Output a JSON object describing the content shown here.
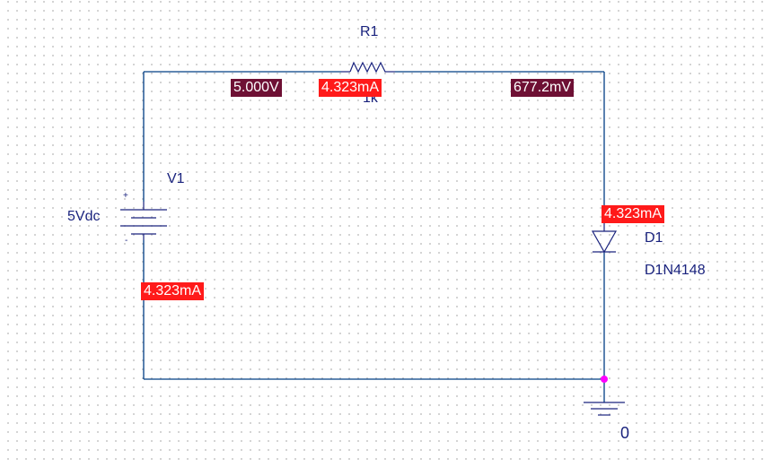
{
  "colors": {
    "wire": "#003d84",
    "part": "#1a237e",
    "voltage_marker_bg": "#6e1034",
    "current_marker_bg": "#ff1a1a",
    "junction_dot": "#ff00ff",
    "grid_dot": "#c8c8c8"
  },
  "components": {
    "r1": {
      "ref": "R1",
      "value": "1k"
    },
    "v1": {
      "ref": "V1",
      "value": "5Vdc",
      "plus": "+",
      "minus": "-"
    },
    "d1": {
      "ref": "D1",
      "value": "D1N4148"
    },
    "ground": {
      "label": "0"
    }
  },
  "markers": {
    "voltage_top_left": "5.000V",
    "voltage_top_right": "677.2mV",
    "current_r1": "4.323mA",
    "current_d1": "4.323mA",
    "current_v1": "4.323mA"
  },
  "icons": {
    "resistor": "resistor-icon",
    "battery": "dc-voltage-source-icon",
    "diode": "diode-icon",
    "ground": "ground-icon"
  }
}
